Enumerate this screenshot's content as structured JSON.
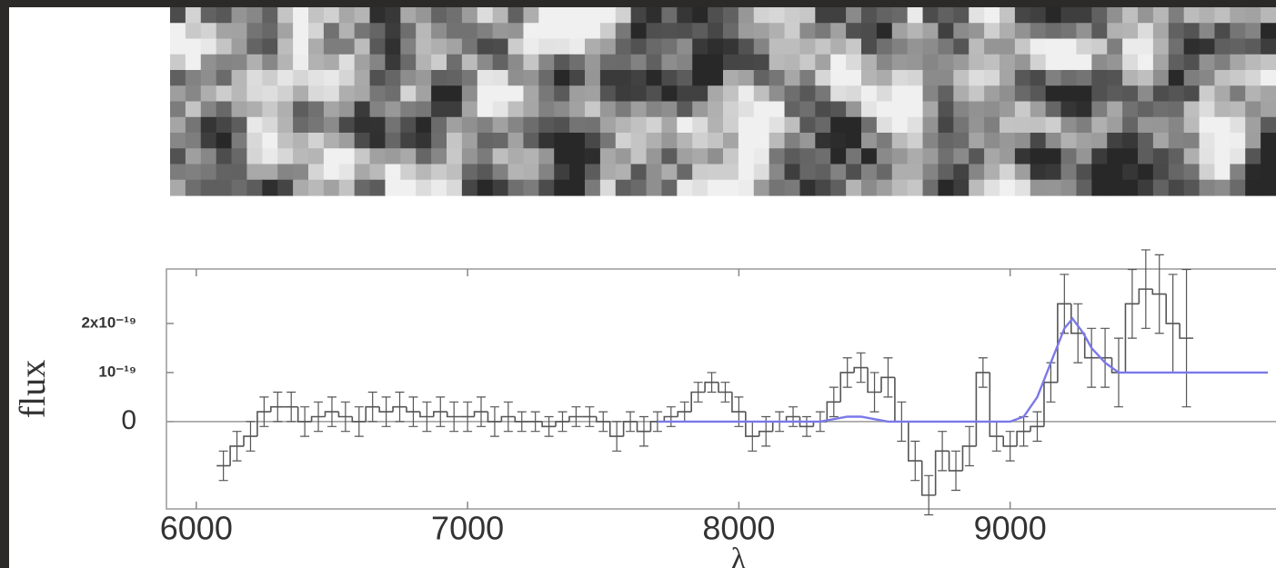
{
  "chart_data": {
    "type": "step",
    "x_label": "λ",
    "y_label": "flux",
    "xlim": [
      5890,
      9980
    ],
    "ylim": [
      -1.78e-19,
      3.11e-19
    ],
    "xticks": [
      6000,
      7000,
      8000,
      9000
    ],
    "yticks": [
      {
        "value": 2e-19,
        "label": "2x10⁻¹⁹"
      },
      {
        "value": 1e-19,
        "label": "10⁻¹⁹"
      },
      0
    ],
    "series": [
      {
        "color": "#555555",
        "x": [
          6100,
          6150,
          6200,
          6250,
          6300,
          6350,
          6400,
          6450,
          6500,
          6550,
          6600,
          6650,
          6700,
          6750,
          6800,
          6850,
          6900,
          6950,
          7000,
          7050,
          7100,
          7150,
          7200,
          7250,
          7300,
          7350,
          7400,
          7450,
          7500,
          7550,
          7600,
          7650,
          7700,
          7750,
          7800,
          7850,
          7900,
          7950,
          8000,
          8050,
          8100,
          8150,
          8200,
          8250,
          8300,
          8350,
          8400,
          8450,
          8500,
          8550,
          8600,
          8650,
          8700,
          8750,
          8800,
          8850,
          8900,
          8950,
          9000,
          9050,
          9100,
          9150,
          9200,
          9250,
          9300,
          9350,
          9400,
          9450,
          9500,
          9550,
          9600,
          9650
        ],
        "values": [
          -9e-20,
          -5e-20,
          -3e-20,
          2e-20,
          3e-20,
          3e-20,
          0.0,
          1e-20,
          2e-20,
          1e-20,
          0.0,
          3e-20,
          2e-20,
          3e-20,
          2e-20,
          1e-20,
          2e-20,
          1e-20,
          1e-20,
          2e-20,
          0.0,
          1e-20,
          0.0,
          0.0,
          -1e-20,
          0.0,
          1e-20,
          1e-20,
          0.0,
          -3e-20,
          0.0,
          -2e-20,
          0.0,
          1e-20,
          2e-20,
          6e-20,
          8e-20,
          6e-20,
          2e-20,
          -3e-20,
          -2e-20,
          0.0,
          1e-20,
          -1e-20,
          0.0,
          4e-20,
          1e-19,
          1.1e-19,
          6e-20,
          9e-20,
          0.0,
          -8e-20,
          -1.5e-19,
          -6e-20,
          -1e-19,
          -5e-20,
          1e-19,
          -3e-20,
          -5e-20,
          -2e-20,
          -1e-20,
          8e-20,
          2.4e-19,
          1.8e-19,
          1.3e-19,
          1.3e-19,
          1e-19,
          2.4e-19,
          2.7e-19,
          2.6e-19,
          2e-19,
          1.7e-19
        ],
        "errors": [
          3e-20,
          3e-20,
          3e-20,
          3e-20,
          3e-20,
          3e-20,
          3e-20,
          3e-20,
          3e-20,
          3e-20,
          3e-20,
          3e-20,
          3e-20,
          3e-20,
          3e-20,
          3e-20,
          3e-20,
          3e-20,
          3e-20,
          3e-20,
          3e-20,
          3e-20,
          2e-20,
          2e-20,
          2e-20,
          2e-20,
          2e-20,
          2e-20,
          2e-20,
          3e-20,
          2e-20,
          3e-20,
          2e-20,
          2e-20,
          2e-20,
          2e-20,
          2e-20,
          2e-20,
          3e-20,
          3e-20,
          3e-20,
          2e-20,
          2e-20,
          2e-20,
          2e-20,
          3e-20,
          3e-20,
          3e-20,
          4e-20,
          4e-20,
          4e-20,
          4e-20,
          4e-20,
          4e-20,
          4e-20,
          4e-20,
          3e-20,
          3e-20,
          3e-20,
          3e-20,
          3e-20,
          4e-20,
          6e-20,
          6e-20,
          6e-20,
          6e-20,
          7e-20,
          7e-20,
          8e-20,
          8e-20,
          1e-19,
          1.4e-19
        ]
      },
      {
        "color": "#7b78e8",
        "x": [
          7700,
          8300,
          8350,
          8400,
          8450,
          8500,
          8550,
          8600,
          9000,
          9050,
          9100,
          9150,
          9200,
          9230,
          9270,
          9300,
          9350,
          9400,
          9500,
          9950
        ],
        "values": [
          0,
          0,
          5e-21,
          1e-20,
          1e-20,
          5e-21,
          0,
          0,
          0,
          1e-20,
          5e-20,
          1.2e-19,
          1.9e-19,
          2.1e-19,
          1.8e-19,
          1.5e-19,
          1.2e-19,
          1e-19,
          1e-19,
          1e-19
        ]
      }
    ]
  }
}
